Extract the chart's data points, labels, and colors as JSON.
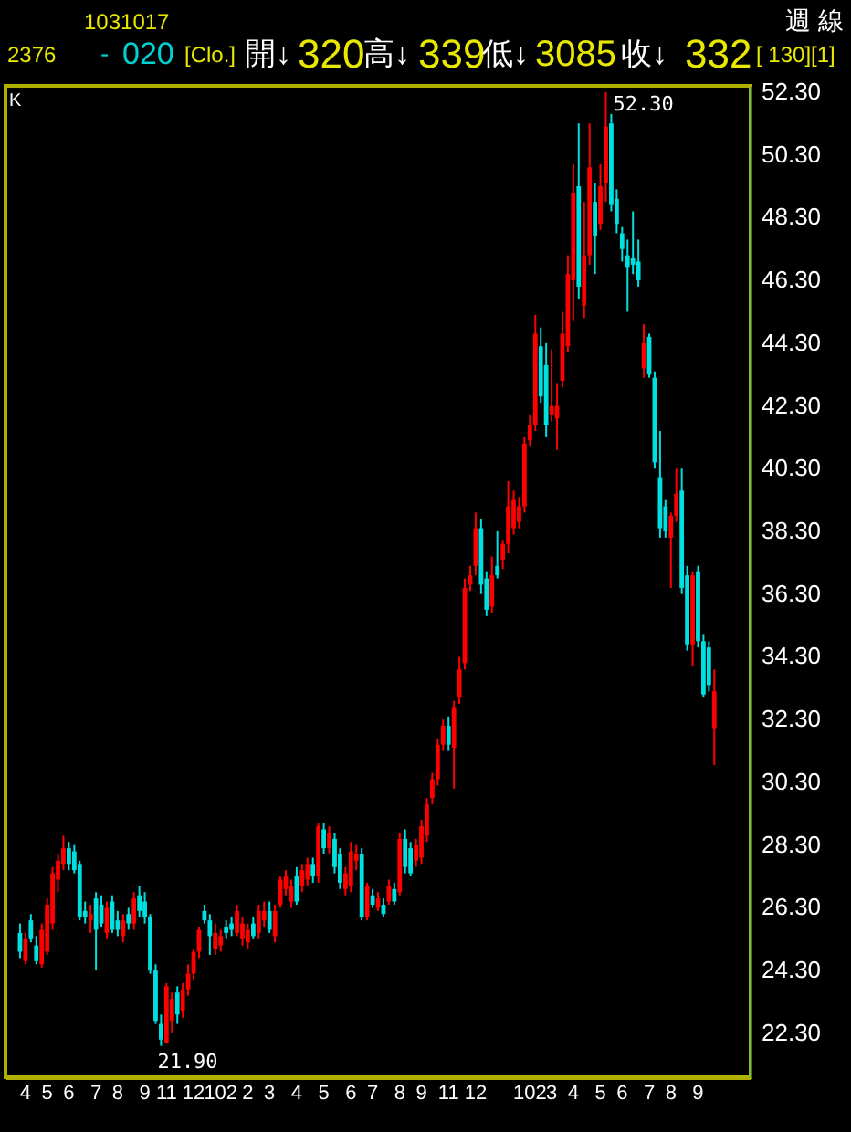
{
  "chart_data": {
    "type": "candlestick",
    "title": "週 線",
    "categories": [
      null,
      "4",
      null,
      null,
      null,
      "5",
      null,
      null,
      null,
      "6",
      null,
      null,
      null,
      null,
      "7",
      null,
      null,
      null,
      "8",
      null,
      null,
      null,
      null,
      "9",
      null,
      null,
      null,
      "11",
      null,
      null,
      null,
      null,
      "12",
      null,
      null,
      null,
      null,
      "102",
      null,
      null,
      null,
      null,
      "2",
      null,
      null,
      null,
      "3",
      null,
      null,
      null,
      null,
      "4",
      null,
      null,
      null,
      null,
      "5",
      null,
      null,
      null,
      null,
      "6",
      null,
      null,
      null,
      "7",
      null,
      null,
      null,
      null,
      "8",
      null,
      null,
      null,
      "9",
      null,
      null,
      null,
      null,
      "11",
      null,
      null,
      null,
      null,
      "12",
      null,
      null,
      null,
      null,
      null,
      null,
      null,
      null,
      null,
      "102",
      null,
      null,
      null,
      "3",
      null,
      null,
      null,
      "4",
      null,
      null,
      null,
      null,
      "5",
      null,
      null,
      null,
      "6",
      null,
      null,
      null,
      null,
      "7",
      null,
      null,
      null,
      "8",
      null,
      null,
      null,
      null,
      "9",
      null,
      null,
      null
    ],
    "ohlc": [
      [
        25.5,
        25.8,
        24.7,
        24.9
      ],
      [
        24.6,
        25.5,
        24.5,
        25.3
      ],
      [
        25.9,
        26.1,
        25.2,
        25.3
      ],
      [
        25.1,
        25.4,
        24.5,
        24.6
      ],
      [
        24.5,
        25.8,
        24.4,
        25.6
      ],
      [
        24.9,
        26.6,
        24.8,
        26.4
      ],
      [
        25.8,
        27.6,
        25.6,
        27.4
      ],
      [
        27.2,
        28.0,
        26.8,
        27.8
      ],
      [
        27.7,
        28.6,
        27.5,
        28.2
      ],
      [
        28.2,
        28.4,
        27.5,
        27.7
      ],
      [
        28.1,
        28.3,
        27.4,
        27.5
      ],
      [
        27.7,
        27.8,
        25.9,
        26.0
      ],
      [
        26.2,
        26.5,
        25.8,
        26.0
      ],
      [
        25.9,
        26.4,
        25.5,
        26.1
      ],
      [
        26.6,
        26.8,
        24.3,
        25.6
      ],
      [
        26.4,
        26.7,
        25.7,
        25.8
      ],
      [
        25.5,
        26.5,
        25.3,
        26.3
      ],
      [
        26.5,
        26.7,
        25.5,
        25.6
      ],
      [
        25.9,
        26.2,
        25.4,
        25.6
      ],
      [
        25.4,
        26.1,
        25.2,
        25.9
      ],
      [
        26.1,
        26.3,
        25.6,
        25.8
      ],
      [
        25.8,
        26.8,
        25.6,
        26.6
      ],
      [
        26.7,
        27.0,
        26.0,
        26.2
      ],
      [
        26.5,
        26.8,
        25.8,
        26.0
      ],
      [
        26.0,
        26.1,
        24.2,
        24.3
      ],
      [
        24.3,
        24.5,
        22.6,
        22.7
      ],
      [
        22.6,
        22.9,
        21.9,
        22.1
      ],
      [
        22.0,
        23.9,
        22.0,
        23.8
      ],
      [
        22.7,
        23.6,
        22.3,
        23.4
      ],
      [
        23.6,
        23.8,
        22.6,
        22.9
      ],
      [
        23.0,
        23.9,
        22.8,
        23.7
      ],
      [
        23.7,
        24.5,
        23.5,
        24.2
      ],
      [
        24.2,
        25.0,
        24.0,
        24.9
      ],
      [
        24.9,
        25.7,
        24.7,
        25.6
      ],
      [
        26.2,
        26.4,
        25.8,
        25.9
      ],
      [
        25.9,
        26.1,
        24.8,
        25.4
      ],
      [
        25.0,
        25.8,
        24.8,
        25.5
      ],
      [
        25.1,
        25.6,
        24.9,
        25.4
      ],
      [
        25.7,
        25.9,
        25.3,
        25.5
      ],
      [
        25.8,
        26.0,
        25.4,
        25.6
      ],
      [
        25.5,
        26.4,
        25.4,
        26.2
      ],
      [
        25.3,
        26.0,
        25.1,
        25.8
      ],
      [
        25.2,
        25.8,
        25.0,
        25.6
      ],
      [
        25.8,
        26.0,
        25.3,
        25.4
      ],
      [
        25.5,
        26.4,
        25.3,
        26.2
      ],
      [
        25.9,
        26.5,
        25.7,
        26.2
      ],
      [
        26.2,
        26.5,
        25.5,
        25.6
      ],
      [
        25.4,
        26.4,
        25.2,
        26.2
      ],
      [
        26.4,
        27.3,
        26.3,
        27.2
      ],
      [
        26.9,
        27.5,
        26.7,
        27.3
      ],
      [
        26.5,
        27.2,
        26.3,
        27.0
      ],
      [
        27.3,
        27.6,
        26.4,
        26.5
      ],
      [
        27.0,
        27.7,
        26.8,
        27.5
      ],
      [
        27.2,
        27.9,
        27.0,
        27.7
      ],
      [
        27.7,
        27.9,
        27.1,
        27.3
      ],
      [
        27.3,
        29.0,
        27.1,
        28.9
      ],
      [
        28.8,
        29.0,
        28.0,
        28.2
      ],
      [
        28.2,
        28.9,
        28.0,
        28.7
      ],
      [
        28.5,
        28.7,
        27.4,
        27.6
      ],
      [
        28.0,
        28.2,
        26.9,
        27.1
      ],
      [
        26.9,
        27.6,
        26.7,
        27.4
      ],
      [
        27.0,
        28.4,
        26.8,
        28.1
      ],
      [
        27.8,
        28.3,
        27.5,
        28.0
      ],
      [
        28.0,
        28.2,
        25.9,
        26.0
      ],
      [
        26.0,
        27.1,
        25.9,
        27.0
      ],
      [
        26.7,
        26.9,
        26.3,
        26.4
      ],
      [
        26.3,
        26.8,
        26.2,
        26.6
      ],
      [
        26.4,
        26.6,
        26.0,
        26.1
      ],
      [
        26.5,
        27.2,
        26.4,
        27.0
      ],
      [
        26.9,
        27.1,
        26.4,
        26.5
      ],
      [
        26.8,
        28.7,
        26.7,
        28.5
      ],
      [
        28.5,
        28.8,
        27.4,
        27.6
      ],
      [
        28.2,
        28.4,
        27.3,
        27.4
      ],
      [
        27.8,
        28.5,
        27.6,
        28.3
      ],
      [
        27.9,
        29.1,
        27.7,
        28.9
      ],
      [
        28.6,
        29.8,
        28.4,
        29.6
      ],
      [
        29.8,
        30.6,
        29.6,
        30.4
      ],
      [
        30.4,
        31.7,
        30.2,
        31.5
      ],
      [
        31.5,
        32.3,
        31.3,
        32.1
      ],
      [
        32.1,
        32.4,
        31.3,
        31.5
      ],
      [
        31.4,
        32.9,
        30.1,
        32.7
      ],
      [
        33.0,
        34.3,
        32.8,
        33.9
      ],
      [
        34.1,
        36.8,
        33.9,
        36.5
      ],
      [
        36.6,
        37.2,
        36.4,
        36.9
      ],
      [
        37.2,
        38.9,
        36.9,
        38.4
      ],
      [
        38.4,
        38.7,
        36.3,
        36.6
      ],
      [
        36.8,
        37.0,
        35.6,
        35.8
      ],
      [
        35.9,
        37.5,
        35.7,
        36.9
      ],
      [
        37.2,
        38.3,
        36.8,
        36.9
      ],
      [
        37.4,
        38.0,
        37.1,
        37.9
      ],
      [
        37.9,
        39.9,
        37.6,
        39.1
      ],
      [
        38.4,
        39.6,
        38.2,
        39.3
      ],
      [
        38.6,
        39.4,
        38.4,
        39.1
      ],
      [
        39.1,
        41.3,
        38.9,
        41.1
      ],
      [
        41.2,
        42.0,
        41.0,
        41.7
      ],
      [
        41.7,
        45.2,
        41.5,
        44.6
      ],
      [
        44.2,
        44.8,
        42.4,
        42.6
      ],
      [
        43.6,
        44.3,
        41.3,
        41.7
      ],
      [
        42.0,
        44.1,
        41.8,
        42.3
      ],
      [
        41.9,
        43.0,
        40.9,
        42.3
      ],
      [
        43.1,
        45.3,
        42.9,
        44.6
      ],
      [
        44.2,
        47.1,
        44.0,
        46.5
      ],
      [
        46.3,
        50.0,
        45.0,
        49.1
      ],
      [
        49.3,
        51.3,
        45.7,
        46.1
      ],
      [
        45.5,
        48.8,
        45.1,
        47.1
      ],
      [
        47.1,
        51.3,
        46.8,
        49.9
      ],
      [
        48.8,
        49.4,
        46.5,
        47.7
      ],
      [
        48.1,
        50.0,
        47.9,
        49.3
      ],
      [
        49.4,
        52.3,
        48.8,
        51.2
      ],
      [
        51.3,
        51.6,
        48.5,
        48.7
      ],
      [
        48.9,
        49.2,
        47.8,
        48.1
      ],
      [
        47.8,
        48.0,
        46.9,
        47.3
      ],
      [
        47.1,
        47.6,
        45.3,
        46.7
      ],
      [
        47.0,
        48.5,
        46.5,
        46.8
      ],
      [
        46.9,
        47.6,
        46.1,
        46.3
      ],
      [
        43.5,
        44.9,
        43.2,
        44.3
      ],
      [
        44.5,
        44.6,
        43.2,
        43.3
      ],
      [
        43.2,
        43.4,
        40.3,
        40.5
      ],
      [
        40.0,
        41.5,
        38.1,
        38.4
      ],
      [
        39.1,
        39.3,
        38.1,
        38.3
      ],
      [
        38.1,
        38.9,
        36.5,
        38.8
      ],
      [
        38.8,
        40.3,
        38.6,
        39.5
      ],
      [
        39.6,
        40.3,
        36.3,
        36.5
      ],
      [
        36.9,
        37.2,
        34.5,
        34.7
      ],
      [
        34.7,
        37.0,
        34.0,
        36.9
      ],
      [
        37.0,
        37.2,
        34.6,
        34.8
      ],
      [
        34.8,
        35.0,
        33.0,
        33.1
      ],
      [
        34.6,
        34.8,
        33.2,
        33.4
      ],
      [
        32.0,
        33.9,
        30.85,
        33.2
      ]
    ],
    "colors": [
      "#00e0e0",
      "#ff0000",
      "#00e0e0",
      "#00e0e0",
      "#ff0000",
      "#ff0000",
      "#ff0000",
      "#ff0000",
      "#ff0000",
      "#00e0e0",
      "#00e0e0",
      "#00e0e0",
      "#00e0e0",
      "#ff0000",
      "#00e0e0",
      "#00e0e0",
      "#ff0000",
      "#00e0e0",
      "#00e0e0",
      "#ff0000",
      "#00e0e0",
      "#ff0000",
      "#00e0e0",
      "#00e0e0",
      "#00e0e0",
      "#00e0e0",
      "#00e0e0",
      "#ff0000",
      "#ff0000",
      "#00e0e0",
      "#ff0000",
      "#ff0000",
      "#ff0000",
      "#ff0000",
      "#00e0e0",
      "#00e0e0",
      "#ff0000",
      "#ff0000",
      "#00e0e0",
      "#00e0e0",
      "#ff0000",
      "#ff0000",
      "#ff0000",
      "#00e0e0",
      "#ff0000",
      "#ff0000",
      "#00e0e0",
      "#ff0000",
      "#ff0000",
      "#ff0000",
      "#ff0000",
      "#00e0e0",
      "#ff0000",
      "#ff0000",
      "#00e0e0",
      "#ff0000",
      "#00e0e0",
      "#ff0000",
      "#00e0e0",
      "#00e0e0",
      "#ff0000",
      "#ff0000",
      "#ff0000",
      "#00e0e0",
      "#ff0000",
      "#00e0e0",
      "#ff0000",
      "#00e0e0",
      "#ff0000",
      "#00e0e0",
      "#ff0000",
      "#00e0e0",
      "#00e0e0",
      "#ff0000",
      "#ff0000",
      "#ff0000",
      "#ff0000",
      "#ff0000",
      "#ff0000",
      "#00e0e0",
      "#ff0000",
      "#ff0000",
      "#ff0000",
      "#ff0000",
      "#ff0000",
      "#00e0e0",
      "#00e0e0",
      "#ff0000",
      "#00e0e0",
      "#ff0000",
      "#ff0000",
      "#ff0000",
      "#ff0000",
      "#ff0000",
      "#ff0000",
      "#ff0000",
      "#00e0e0",
      "#00e0e0",
      "#ff0000",
      "#ff0000",
      "#ff0000",
      "#ff0000",
      "#ff0000",
      "#00e0e0",
      "#ff0000",
      "#ff0000",
      "#00e0e0",
      "#ff0000",
      "#ff0000",
      "#00e0e0",
      "#00e0e0",
      "#00e0e0",
      "#00e0e0",
      "#00e0e0",
      "#00e0e0",
      "#ff0000",
      "#00e0e0",
      "#00e0e0",
      "#00e0e0",
      "#00e0e0",
      "#ff0000",
      "#ff0000",
      "#00e0e0",
      "#00e0e0",
      "#ff0000",
      "#00e0e0",
      "#00e0e0",
      "#00e0e0",
      "#ff0000"
    ],
    "ylim": [
      20.9,
      52.5
    ],
    "yticks": [
      {
        "value": 22.3,
        "label": "22.30"
      },
      {
        "value": 24.3,
        "label": "24.30"
      },
      {
        "value": 26.3,
        "label": "26.30"
      },
      {
        "value": 28.3,
        "label": "28.30"
      },
      {
        "value": 30.3,
        "label": "30.30"
      },
      {
        "value": 32.3,
        "label": "32.30"
      },
      {
        "value": 34.3,
        "label": "34.30"
      },
      {
        "value": 36.3,
        "label": "36.30"
      },
      {
        "value": 38.3,
        "label": "38.30"
      },
      {
        "value": 40.3,
        "label": "40.30"
      },
      {
        "value": 42.3,
        "label": "42.30"
      },
      {
        "value": 44.3,
        "label": "44.30"
      },
      {
        "value": 46.3,
        "label": "46.30"
      },
      {
        "value": 48.3,
        "label": "48.30"
      },
      {
        "value": 50.3,
        "label": "50.30"
      },
      {
        "value": 52.3,
        "label": "52.30"
      }
    ],
    "grid": false,
    "annotations": [
      "1031017",
      "2376",
      "-",
      "020",
      "[Clo.]",
      "開↓",
      "320",
      "高↓",
      "339",
      "低↓",
      "3085",
      "收↓",
      "332",
      "[ 130][1]",
      "K",
      "52.30",
      "21.90"
    ]
  }
}
